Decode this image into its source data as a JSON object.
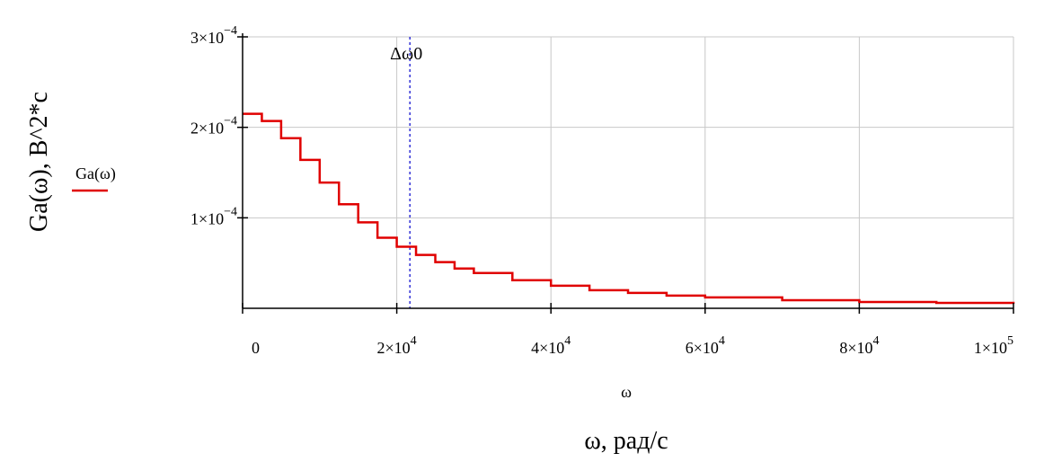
{
  "chart_data": {
    "type": "line",
    "title": "",
    "xlabel": "ω, рад/с",
    "x_var_label": "ω",
    "ylabel": "Ga(ω), В^2*с",
    "xlim": [
      0,
      100000
    ],
    "ylim": [
      0,
      0.0003
    ],
    "grid": true,
    "legend_position": "left",
    "x_ticks": [
      {
        "value": 0,
        "mantissa": "0",
        "exp": ""
      },
      {
        "value": 20000,
        "mantissa": "2×10",
        "exp": "4"
      },
      {
        "value": 40000,
        "mantissa": "4×10",
        "exp": "4"
      },
      {
        "value": 60000,
        "mantissa": "6×10",
        "exp": "4"
      },
      {
        "value": 80000,
        "mantissa": "8×10",
        "exp": "4"
      },
      {
        "value": 100000,
        "mantissa": "1×10",
        "exp": "5"
      }
    ],
    "y_ticks": [
      {
        "value": 0.0001,
        "mantissa": "1×10",
        "exp": "−4"
      },
      {
        "value": 0.0002,
        "mantissa": "2×10",
        "exp": "−4"
      },
      {
        "value": 0.0003,
        "mantissa": "3×10",
        "exp": "−4"
      }
    ],
    "series": [
      {
        "name": "Ga(ω)",
        "color": "#e00000",
        "style": "step",
        "x": [
          0,
          2500,
          5000,
          7500,
          10000,
          12500,
          15000,
          17500,
          20000,
          22500,
          25000,
          27500,
          30000,
          35000,
          40000,
          45000,
          50000,
          55000,
          60000,
          70000,
          80000,
          90000,
          100000
        ],
        "y": [
          0.000215,
          0.000207,
          0.000188,
          0.000164,
          0.000139,
          0.000115,
          9.5e-05,
          7.8e-05,
          6.8e-05,
          5.9e-05,
          5.1e-05,
          4.4e-05,
          3.9e-05,
          3.1e-05,
          2.5e-05,
          2e-05,
          1.7e-05,
          1.4e-05,
          1.2e-05,
          9e-06,
          7e-06,
          6e-06,
          5e-06
        ]
      }
    ],
    "markers": [
      {
        "label": "Δω0",
        "x": 21700,
        "color": "#0000cc",
        "style": "dashed"
      }
    ]
  }
}
